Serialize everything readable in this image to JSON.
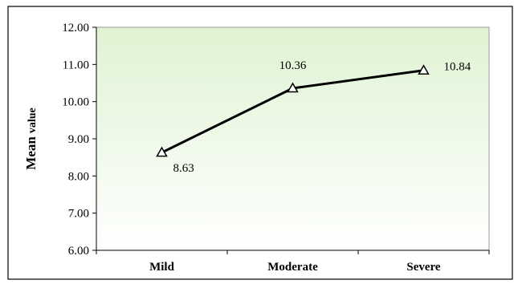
{
  "chart_data": {
    "type": "line",
    "categories": [
      "Mild",
      "Moderate",
      "Severe"
    ],
    "series": [
      {
        "values": [
          8.63,
          10.36,
          10.84
        ]
      }
    ],
    "data_labels": [
      "8.63",
      "10.36",
      "10.84"
    ],
    "ylabel_main": "Mean",
    "ylabel_small": "value",
    "ylim": [
      6.0,
      12.0
    ],
    "yticks": [
      "6.00",
      "7.00",
      "8.00",
      "9.00",
      "10.00",
      "11.00",
      "12.00"
    ],
    "grid": false,
    "colors": {
      "line": "#000000",
      "marker_fill": "#ffffff",
      "plot_gradient_top": "#dff3d3",
      "plot_gradient_bottom": "#ffffff"
    }
  }
}
